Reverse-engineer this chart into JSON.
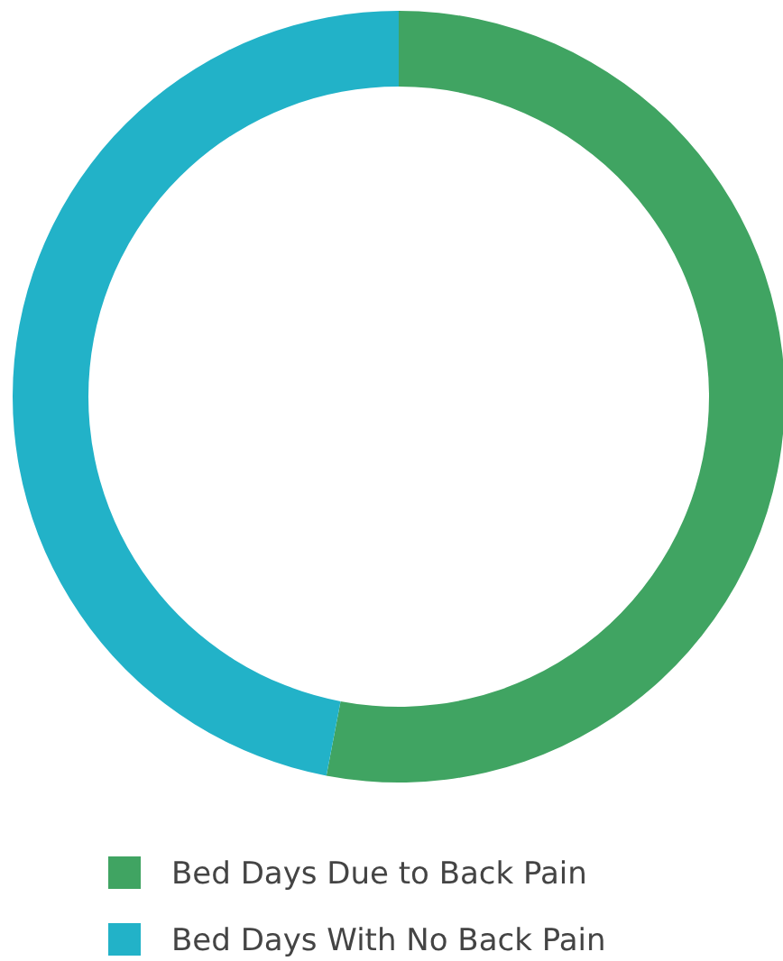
{
  "chart_data": {
    "type": "donut",
    "categories": [
      "Bed Days Due to Back Pain",
      "Bed Days With No Back Pain"
    ],
    "values": [
      53,
      47
    ],
    "colors": [
      "#40a462",
      "#22b2c8"
    ],
    "legend": "bottom"
  }
}
